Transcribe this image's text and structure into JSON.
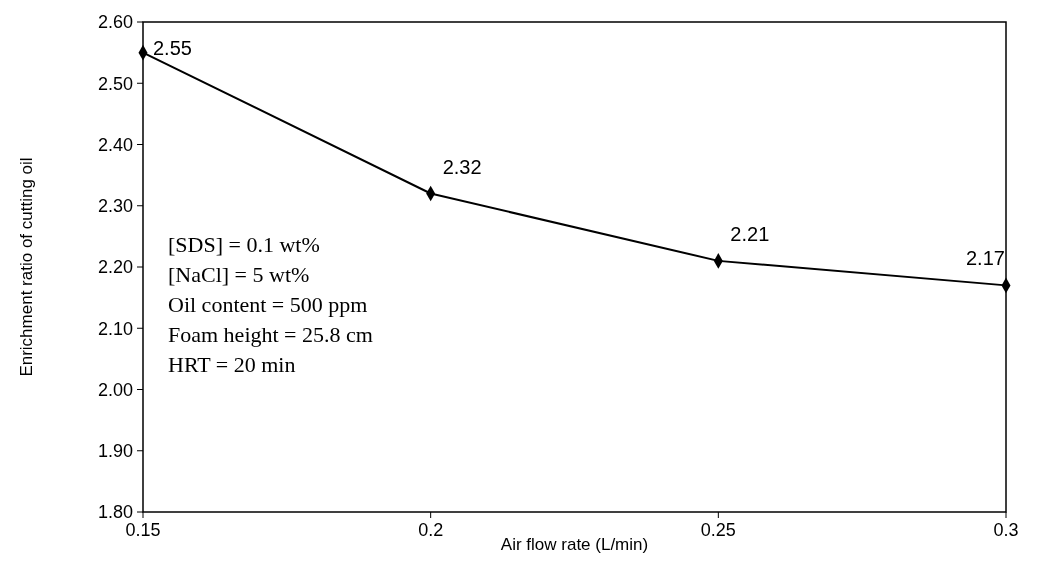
{
  "chart_data": {
    "type": "line",
    "xlabel": "Air flow rate (L/min)",
    "ylabel": "Enrichment ratio of cutting oil",
    "x": [
      0.15,
      0.2,
      0.25,
      0.3
    ],
    "series": [
      {
        "color": "#000000",
        "values": [
          2.55,
          2.32,
          2.21,
          2.17
        ]
      }
    ],
    "xlim": [
      0.15,
      0.3
    ],
    "xticks": [
      0.15,
      0.2,
      0.25,
      0.3
    ],
    "ylim": [
      1.8,
      2.6
    ],
    "yticks": [
      {
        "value": 1.8,
        "label": "1.80"
      },
      {
        "value": 1.9,
        "label": "1.90"
      },
      {
        "value": 2.0,
        "label": "2.00"
      },
      {
        "value": 2.1,
        "label": "2.10"
      },
      {
        "value": 2.2,
        "label": "2.20"
      },
      {
        "value": 2.3,
        "label": "2.30"
      },
      {
        "value": 2.4,
        "label": "2.40"
      },
      {
        "value": 2.5,
        "label": "2.50"
      },
      {
        "value": 2.6,
        "label": "2.60"
      }
    ],
    "marker": "diamond",
    "data_labels": true,
    "grid": false,
    "annotations": [
      "[SDS] = 0.1 wt%",
      "[NaCl] = 5 wt%",
      "Oil content = 500 ppm",
      "Foam height = 25.8 cm",
      "HRT = 20 min"
    ]
  }
}
